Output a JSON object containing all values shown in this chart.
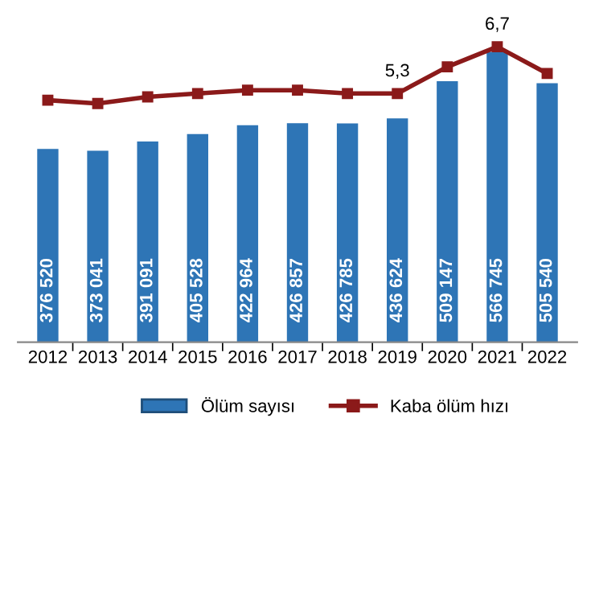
{
  "chart_data": {
    "type": "bar",
    "categories": [
      "2012",
      "2013",
      "2014",
      "2015",
      "2016",
      "2017",
      "2018",
      "2019",
      "2020",
      "2021",
      "2022"
    ],
    "series": [
      {
        "name": "Ölüm sayısı",
        "color": "#2e75b6",
        "values": [
          376520,
          373041,
          391091,
          405528,
          422964,
          426857,
          426785,
          436624,
          509147,
          566745,
          505540
        ],
        "value_labels": [
          "376 520",
          "373 041",
          "391 091",
          "405 528",
          "422 964",
          "426 857",
          "426 785",
          "436 624",
          "509 147",
          "566 745",
          "505 540"
        ]
      },
      {
        "name": "Kaba ölüm hızı",
        "type": "line",
        "axis": "y2",
        "color": "#8b1a1a",
        "marker": "square",
        "values": [
          5.1,
          5.0,
          5.2,
          5.3,
          5.4,
          5.4,
          5.3,
          5.3,
          6.1,
          6.7,
          5.9
        ],
        "value_labels": [
          null,
          null,
          null,
          null,
          null,
          null,
          null,
          "5,3",
          null,
          "6,7",
          null
        ]
      }
    ],
    "tick_labels": "x",
    "legend": "bottom",
    "grid": false
  }
}
